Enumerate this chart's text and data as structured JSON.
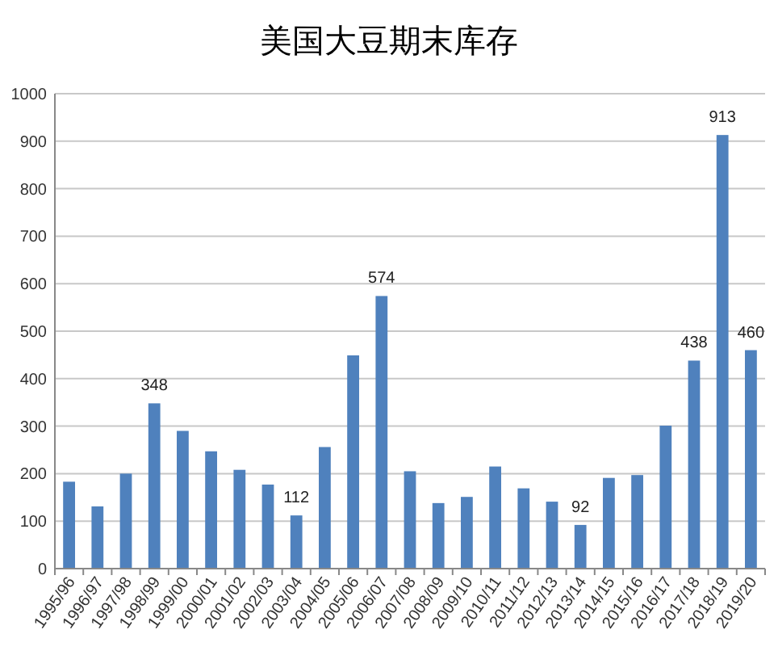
{
  "chart_data": {
    "type": "bar",
    "title": "美国大豆期末库存",
    "categories": [
      "1995/96",
      "1996/97",
      "1997/98",
      "1998/99",
      "1999/00",
      "2000/01",
      "2001/02",
      "2002/03",
      "2003/04",
      "2004/05",
      "2005/06",
      "2006/07",
      "2007/08",
      "2008/09",
      "2009/10",
      "2010/11",
      "2011/12",
      "2012/13",
      "2013/14",
      "2014/15",
      "2015/16",
      "2016/17",
      "2017/18",
      "2018/19",
      "2019/20"
    ],
    "values": [
      183,
      131,
      200,
      348,
      290,
      247,
      208,
      177,
      112,
      256,
      449,
      574,
      205,
      138,
      151,
      215,
      169,
      141,
      92,
      191,
      197,
      301,
      438,
      913,
      460
    ],
    "value_labels": [
      null,
      null,
      null,
      "348",
      null,
      null,
      null,
      null,
      "112",
      null,
      null,
      "574",
      null,
      null,
      null,
      null,
      null,
      null,
      "92",
      null,
      null,
      null,
      "438",
      "913",
      "460"
    ],
    "color": "#4f81bd",
    "ylim": [
      0,
      1000
    ],
    "yticks": [
      0,
      100,
      200,
      300,
      400,
      500,
      600,
      700,
      800,
      900,
      1000
    ],
    "grid": "y"
  }
}
